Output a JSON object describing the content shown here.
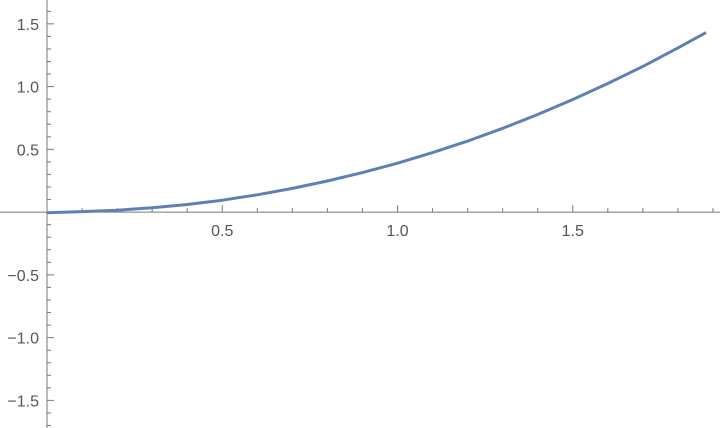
{
  "chart_data": {
    "type": "line",
    "title": "",
    "xlabel": "",
    "ylabel": "",
    "xlim": [
      0,
      1.92
    ],
    "ylim": [
      -1.72,
      1.69
    ],
    "grid": false,
    "x_ticks": [
      0.5,
      1.0,
      1.5
    ],
    "x_tick_labels": [
      "0.5",
      "1.0",
      "1.5"
    ],
    "y_ticks": [
      -1.5,
      -1.0,
      -0.5,
      0.5,
      1.0,
      1.5
    ],
    "y_tick_labels": [
      "−1.5",
      "−1.0",
      "−0.5",
      "0.5",
      "1.0",
      "1.5"
    ],
    "series": [
      {
        "color": "#5e81b5",
        "x": [
          0,
          0.1,
          0.2,
          0.3,
          0.4,
          0.5,
          0.6,
          0.7,
          0.8,
          0.9,
          1.0,
          1.1,
          1.2,
          1.3,
          1.4,
          1.5,
          1.6,
          1.7,
          1.8,
          1.88
        ],
        "y": [
          -0.005,
          0.004,
          0.015,
          0.034,
          0.061,
          0.095,
          0.138,
          0.189,
          0.248,
          0.315,
          0.39,
          0.474,
          0.566,
          0.668,
          0.778,
          0.897,
          1.025,
          1.161,
          1.308,
          1.43
        ]
      }
    ]
  }
}
